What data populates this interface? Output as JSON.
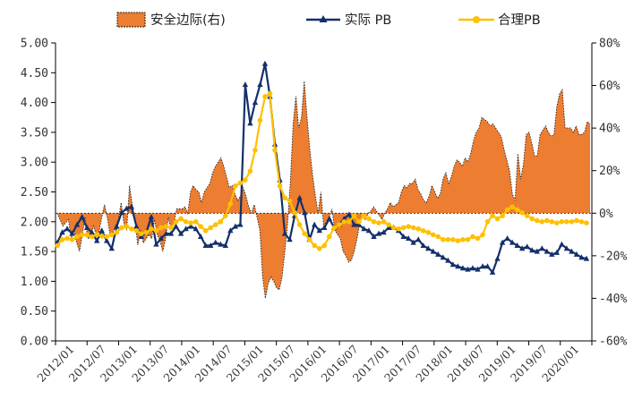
{
  "chart_data": {
    "type": "line+area",
    "colors": {
      "margin": "#ED7D31",
      "margin_edge": "#222222",
      "actual": "#14306B",
      "reasonable": "#FFC000",
      "axis": "#000000"
    },
    "legend": [
      {
        "key": "margin",
        "label": "安全边际(右)"
      },
      {
        "key": "actual",
        "label": "实际 PB"
      },
      {
        "key": "reasonable",
        "label": "合理PB"
      }
    ],
    "y_left": {
      "min": 0,
      "max": 5,
      "ticks": [
        "0.00",
        "0.50",
        "1.00",
        "1.50",
        "2.00",
        "2.50",
        "3.00",
        "3.50",
        "4.00",
        "4.50",
        "5.00"
      ]
    },
    "y_right": {
      "min": -60,
      "max": 80,
      "ticks": [
        "-60%",
        "-40%",
        "-20%",
        "0%",
        "20%",
        "40%",
        "60%",
        "80%"
      ]
    },
    "x_categories": [
      "2012/01",
      "2012/07",
      "2013/01",
      "2013/07",
      "2014/01",
      "2014/07",
      "2015/01",
      "2015/07",
      "2016/01",
      "2016/07",
      "2017/01",
      "2017/07",
      "2018/01",
      "2018/07",
      "2019/01",
      "2019/07",
      "2020/01"
    ],
    "series_margin": [
      {
        "x": 0,
        "y": 0
      },
      {
        "x": 2,
        "y": -6
      },
      {
        "x": 4,
        "y": -3
      },
      {
        "x": 5,
        "y": -12
      },
      {
        "x": 6,
        "y": -8
      },
      {
        "x": 7,
        "y": -14
      },
      {
        "x": 8,
        "y": -18
      },
      {
        "x": 9,
        "y": -10
      },
      {
        "x": 10,
        "y": -2
      },
      {
        "x": 11,
        "y": -12
      },
      {
        "x": 12,
        "y": -11
      },
      {
        "x": 13,
        "y": -6
      },
      {
        "x": 14,
        "y": -10
      },
      {
        "x": 15,
        "y": -9
      },
      {
        "x": 16,
        "y": -2
      },
      {
        "x": 17,
        "y": 4
      },
      {
        "x": 18,
        "y": -2
      },
      {
        "x": 19,
        "y": -10
      },
      {
        "x": 20,
        "y": -9
      },
      {
        "x": 21,
        "y": -6
      },
      {
        "x": 22,
        "y": -3
      },
      {
        "x": 23,
        "y": 5
      },
      {
        "x": 24,
        "y": -5
      },
      {
        "x": 25,
        "y": -8
      },
      {
        "x": 26,
        "y": 13
      },
      {
        "x": 27,
        "y": 4
      },
      {
        "x": 28,
        "y": -4
      },
      {
        "x": 29,
        "y": -15
      },
      {
        "x": 30,
        "y": -8
      },
      {
        "x": 31,
        "y": -14
      },
      {
        "x": 32,
        "y": -12
      },
      {
        "x": 33,
        "y": -10
      },
      {
        "x": 34,
        "y": -12
      },
      {
        "x": 35,
        "y": -3
      },
      {
        "x": 36,
        "y": -10
      },
      {
        "x": 37,
        "y": -13
      },
      {
        "x": 38,
        "y": -18
      },
      {
        "x": 39,
        "y": -12
      },
      {
        "x": 40,
        "y": -2
      },
      {
        "x": 41,
        "y": -8
      },
      {
        "x": 42,
        "y": -5
      },
      {
        "x": 43,
        "y": 2
      },
      {
        "x": 44,
        "y": 2
      },
      {
        "x": 45,
        "y": 2
      },
      {
        "x": 46,
        "y": 3
      },
      {
        "x": 47,
        "y": 0
      },
      {
        "x": 48,
        "y": 10
      },
      {
        "x": 49,
        "y": 13
      },
      {
        "x": 50,
        "y": 11
      },
      {
        "x": 51,
        "y": 10
      },
      {
        "x": 52,
        "y": 5
      },
      {
        "x": 53,
        "y": 10
      },
      {
        "x": 54,
        "y": 12
      },
      {
        "x": 55,
        "y": 14
      },
      {
        "x": 56,
        "y": 19
      },
      {
        "x": 57,
        "y": 22
      },
      {
        "x": 58,
        "y": 24
      },
      {
        "x": 59,
        "y": 26
      },
      {
        "x": 60,
        "y": 22
      },
      {
        "x": 61,
        "y": 17
      },
      {
        "x": 62,
        "y": 12
      },
      {
        "x": 63,
        "y": 13
      },
      {
        "x": 64,
        "y": 9
      },
      {
        "x": 65,
        "y": 6
      },
      {
        "x": 66,
        "y": 8
      },
      {
        "x": 67,
        "y": 12
      },
      {
        "x": 68,
        "y": 8
      },
      {
        "x": 69,
        "y": 3
      },
      {
        "x": 70,
        "y": 0
      },
      {
        "x": 71,
        "y": 4
      },
      {
        "x": 72,
        "y": -2
      },
      {
        "x": 73,
        "y": -8
      },
      {
        "x": 74,
        "y": -30
      },
      {
        "x": 75,
        "y": -40
      },
      {
        "x": 76,
        "y": -33
      },
      {
        "x": 77,
        "y": -30
      },
      {
        "x": 78,
        "y": -32
      },
      {
        "x": 79,
        "y": -35
      },
      {
        "x": 80,
        "y": -36
      },
      {
        "x": 81,
        "y": -30
      },
      {
        "x": 82,
        "y": -18
      },
      {
        "x": 83,
        "y": -5
      },
      {
        "x": 84,
        "y": 15
      },
      {
        "x": 85,
        "y": 42
      },
      {
        "x": 86,
        "y": 55
      },
      {
        "x": 87,
        "y": 40
      },
      {
        "x": 88,
        "y": 45
      },
      {
        "x": 89,
        "y": 62
      },
      {
        "x": 90,
        "y": 45
      },
      {
        "x": 91,
        "y": 30
      },
      {
        "x": 92,
        "y": 18
      },
      {
        "x": 93,
        "y": 8
      },
      {
        "x": 94,
        "y": 0
      },
      {
        "x": 95,
        "y": 10
      },
      {
        "x": 96,
        "y": -6
      },
      {
        "x": 97,
        "y": -4
      },
      {
        "x": 98,
        "y": -2
      },
      {
        "x": 99,
        "y": 2
      },
      {
        "x": 100,
        "y": -8
      },
      {
        "x": 101,
        "y": -10
      },
      {
        "x": 102,
        "y": -12
      },
      {
        "x": 103,
        "y": -18
      },
      {
        "x": 104,
        "y": -20
      },
      {
        "x": 105,
        "y": -23
      },
      {
        "x": 106,
        "y": -22
      },
      {
        "x": 107,
        "y": -18
      },
      {
        "x": 108,
        "y": -12
      },
      {
        "x": 109,
        "y": -5
      },
      {
        "x": 110,
        "y": -2
      },
      {
        "x": 111,
        "y": -3
      },
      {
        "x": 112,
        "y": 0
      },
      {
        "x": 113,
        "y": 1
      },
      {
        "x": 114,
        "y": 3
      },
      {
        "x": 115,
        "y": 1
      },
      {
        "x": 116,
        "y": -1
      },
      {
        "x": 117,
        "y": -3
      },
      {
        "x": 118,
        "y": 0
      },
      {
        "x": 119,
        "y": 2
      },
      {
        "x": 120,
        "y": 5
      },
      {
        "x": 121,
        "y": 3
      },
      {
        "x": 122,
        "y": 4
      },
      {
        "x": 123,
        "y": 5
      },
      {
        "x": 124,
        "y": 10
      },
      {
        "x": 125,
        "y": 13
      },
      {
        "x": 126,
        "y": 12
      },
      {
        "x": 127,
        "y": 14
      },
      {
        "x": 128,
        "y": 14
      },
      {
        "x": 129,
        "y": 16
      },
      {
        "x": 130,
        "y": 11
      },
      {
        "x": 131,
        "y": 9
      },
      {
        "x": 132,
        "y": 6
      },
      {
        "x": 133,
        "y": 5
      },
      {
        "x": 134,
        "y": 8
      },
      {
        "x": 135,
        "y": 13
      },
      {
        "x": 136,
        "y": 10
      },
      {
        "x": 137,
        "y": 7
      },
      {
        "x": 138,
        "y": 9
      },
      {
        "x": 139,
        "y": 16
      },
      {
        "x": 140,
        "y": 19
      },
      {
        "x": 141,
        "y": 14
      },
      {
        "x": 142,
        "y": 17
      },
      {
        "x": 143,
        "y": 22
      },
      {
        "x": 144,
        "y": 25
      },
      {
        "x": 145,
        "y": 24
      },
      {
        "x": 146,
        "y": 22
      },
      {
        "x": 147,
        "y": 26
      },
      {
        "x": 148,
        "y": 24
      },
      {
        "x": 149,
        "y": 28
      },
      {
        "x": 150,
        "y": 34
      },
      {
        "x": 151,
        "y": 38
      },
      {
        "x": 152,
        "y": 40
      },
      {
        "x": 153,
        "y": 45
      },
      {
        "x": 154,
        "y": 44
      },
      {
        "x": 155,
        "y": 43
      },
      {
        "x": 156,
        "y": 41
      },
      {
        "x": 157,
        "y": 42
      },
      {
        "x": 158,
        "y": 40
      },
      {
        "x": 159,
        "y": 38
      },
      {
        "x": 160,
        "y": 36
      },
      {
        "x": 161,
        "y": 30
      },
      {
        "x": 162,
        "y": 25
      },
      {
        "x": 163,
        "y": 20
      },
      {
        "x": 164,
        "y": 9
      },
      {
        "x": 165,
        "y": 6
      },
      {
        "x": 166,
        "y": 28
      },
      {
        "x": 167,
        "y": 16
      },
      {
        "x": 168,
        "y": 23
      },
      {
        "x": 169,
        "y": 37
      },
      {
        "x": 170,
        "y": 38
      },
      {
        "x": 171,
        "y": 33
      },
      {
        "x": 172,
        "y": 27
      },
      {
        "x": 173,
        "y": 27
      },
      {
        "x": 174,
        "y": 37
      },
      {
        "x": 175,
        "y": 39
      },
      {
        "x": 176,
        "y": 41
      },
      {
        "x": 177,
        "y": 38
      },
      {
        "x": 178,
        "y": 36
      },
      {
        "x": 179,
        "y": 37
      },
      {
        "x": 180,
        "y": 50
      },
      {
        "x": 181,
        "y": 56
      },
      {
        "x": 182,
        "y": 58
      },
      {
        "x": 183,
        "y": 40
      },
      {
        "x": 184,
        "y": 40
      },
      {
        "x": 185,
        "y": 40
      },
      {
        "x": 186,
        "y": 38
      },
      {
        "x": 187,
        "y": 41
      },
      {
        "x": 188,
        "y": 37
      },
      {
        "x": 189,
        "y": 37
      },
      {
        "x": 190,
        "y": 38
      },
      {
        "x": 191,
        "y": 43
      },
      {
        "x": 192,
        "y": 42
      }
    ],
    "series_actual": [
      1.65,
      1.82,
      1.88,
      1.8,
      1.95,
      2.08,
      1.9,
      1.82,
      1.68,
      1.85,
      1.68,
      1.55,
      1.92,
      2.15,
      2.22,
      2.25,
      1.92,
      1.75,
      1.82,
      2.08,
      1.62,
      1.72,
      1.8,
      1.8,
      1.92,
      1.8,
      1.88,
      1.92,
      1.88,
      1.75,
      1.6,
      1.6,
      1.65,
      1.62,
      1.6,
      1.85,
      1.92,
      1.95,
      4.3,
      3.65,
      4.0,
      4.3,
      4.65,
      4.1,
      3.3,
      2.7,
      1.8,
      1.7,
      2.1,
      2.4,
      2.15,
      1.7,
      1.95,
      1.85,
      1.9,
      2.05,
      1.9,
      1.95,
      2.05,
      2.12,
      1.95,
      1.95,
      1.88,
      1.85,
      1.75,
      1.8,
      1.82,
      1.9,
      1.9,
      1.85,
      1.75,
      1.72,
      1.65,
      1.7,
      1.6,
      1.55,
      1.5,
      1.45,
      1.4,
      1.35,
      1.28,
      1.25,
      1.22,
      1.2,
      1.22,
      1.2,
      1.25,
      1.25,
      1.15,
      1.38,
      1.65,
      1.72,
      1.65,
      1.6,
      1.55,
      1.58,
      1.52,
      1.5,
      1.55,
      1.5,
      1.45,
      1.48,
      1.62,
      1.55,
      1.5,
      1.45,
      1.4,
      1.38
    ],
    "series_reasonable": [
      1.6,
      1.7,
      1.72,
      1.7,
      1.75,
      1.78,
      1.78,
      1.75,
      1.78,
      1.76,
      1.75,
      1.78,
      1.82,
      1.9,
      1.92,
      1.88,
      1.85,
      1.8,
      1.82,
      1.88,
      1.85,
      1.9,
      1.92,
      1.9,
      2.0,
      2.05,
      2.0,
      1.98,
      2.0,
      1.92,
      1.85,
      1.9,
      1.95,
      2.0,
      2.1,
      2.3,
      2.6,
      2.65,
      2.7,
      2.85,
      3.2,
      3.7,
      4.1,
      4.15,
      3.2,
      2.6,
      2.4,
      2.35,
      2.15,
      1.95,
      1.8,
      1.7,
      1.6,
      1.55,
      1.6,
      1.75,
      1.9,
      1.95,
      2.0,
      2.0,
      2.1,
      2.0,
      2.1,
      2.05,
      2.0,
      1.98,
      2.0,
      1.95,
      1.9,
      1.88,
      1.9,
      1.92,
      1.9,
      1.88,
      1.85,
      1.82,
      1.78,
      1.75,
      1.7,
      1.7,
      1.7,
      1.68,
      1.7,
      1.7,
      1.75,
      1.72,
      1.78,
      2.0,
      2.1,
      2.05,
      2.1,
      2.2,
      2.25,
      2.2,
      2.15,
      2.1,
      2.05,
      2.02,
      2.0,
      2.02,
      2.0,
      1.98,
      2.0,
      2.0,
      2.0,
      2.02,
      2.0,
      1.98
    ]
  }
}
